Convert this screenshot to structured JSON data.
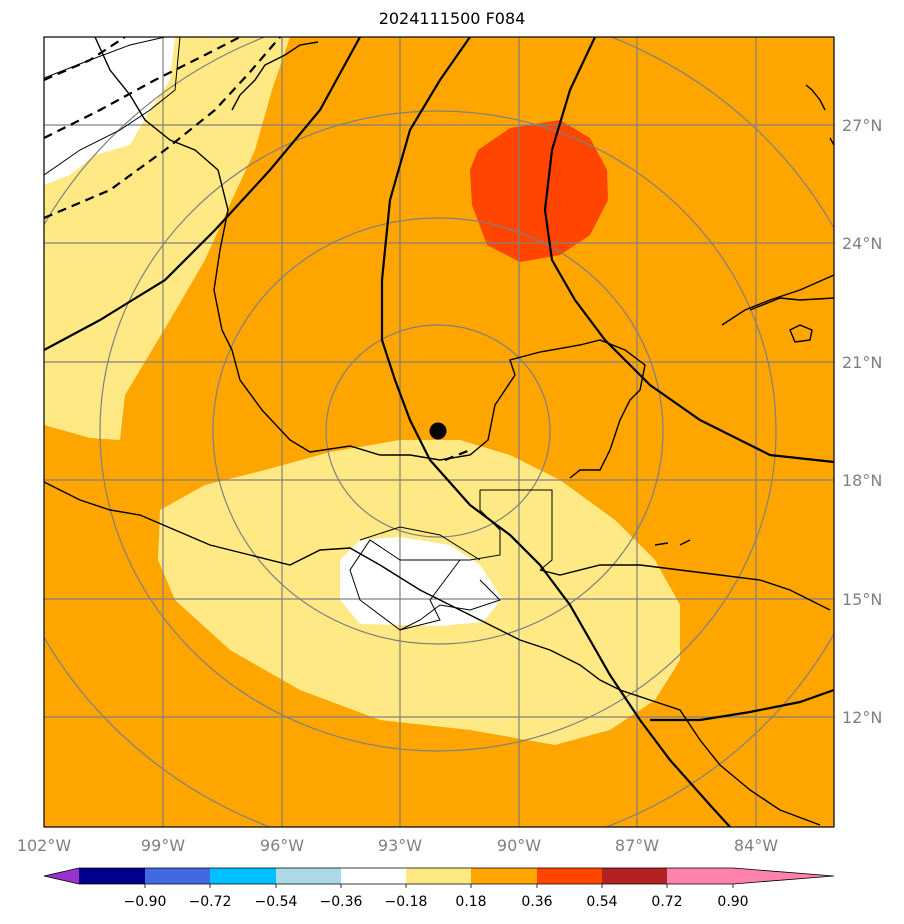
{
  "title": "2024111500 F084",
  "map": {
    "lon_range": [
      -102,
      -82
    ],
    "lat_range": [
      9,
      29
    ],
    "lon_ticks": [
      "102°W",
      "99°W",
      "96°W",
      "93°W",
      "90°W",
      "87°W",
      "84°W"
    ],
    "lat_ticks": [
      "12°N",
      "15°N",
      "18°N",
      "21°N",
      "24°N",
      "27°N"
    ],
    "grid": true,
    "center_marker": {
      "lon": -92.0,
      "lat": 19.2
    }
  },
  "colorbar": {
    "ticks": [
      "−0.90",
      "−0.72",
      "−0.54",
      "−0.36",
      "−0.18",
      "0.18",
      "0.36",
      "0.54",
      "0.72",
      "0.90"
    ],
    "colors": [
      "#9932cc",
      "#00008b",
      "#4169e1",
      "#00bfff",
      "#add8e6",
      "#ffffff",
      "#ffe985",
      "#ffa500",
      "#ff4500",
      "#b22222",
      "#ff82ab"
    ]
  },
  "fill_colors": {
    "light_yellow": "#ffe985",
    "orange": "#ffa500",
    "red_orange": "#ff4500",
    "white": "#ffffff"
  }
}
